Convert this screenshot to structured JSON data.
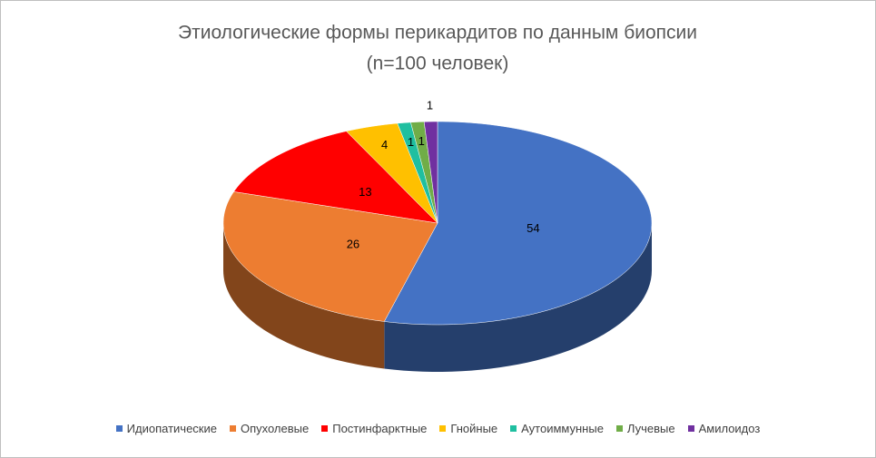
{
  "chart_data": {
    "type": "pie3d",
    "title": "Этиологические формы перикардитов по данным биопсии",
    "subtitle": "(n=100 человек)",
    "categories": [
      "Идиопатические",
      "Опухолевые",
      "Постинфарктные",
      "Гнойные",
      "Аутоиммунные",
      "Лучевые",
      "Амилоидоз"
    ],
    "values": [
      54,
      26,
      13,
      4,
      1,
      1,
      1
    ],
    "colors": [
      "#4472c4",
      "#ed7d31",
      "#ff0000",
      "#ffc000",
      "#1fbfa0",
      "#70ad47",
      "#7030a0"
    ],
    "legend": "bottom"
  }
}
